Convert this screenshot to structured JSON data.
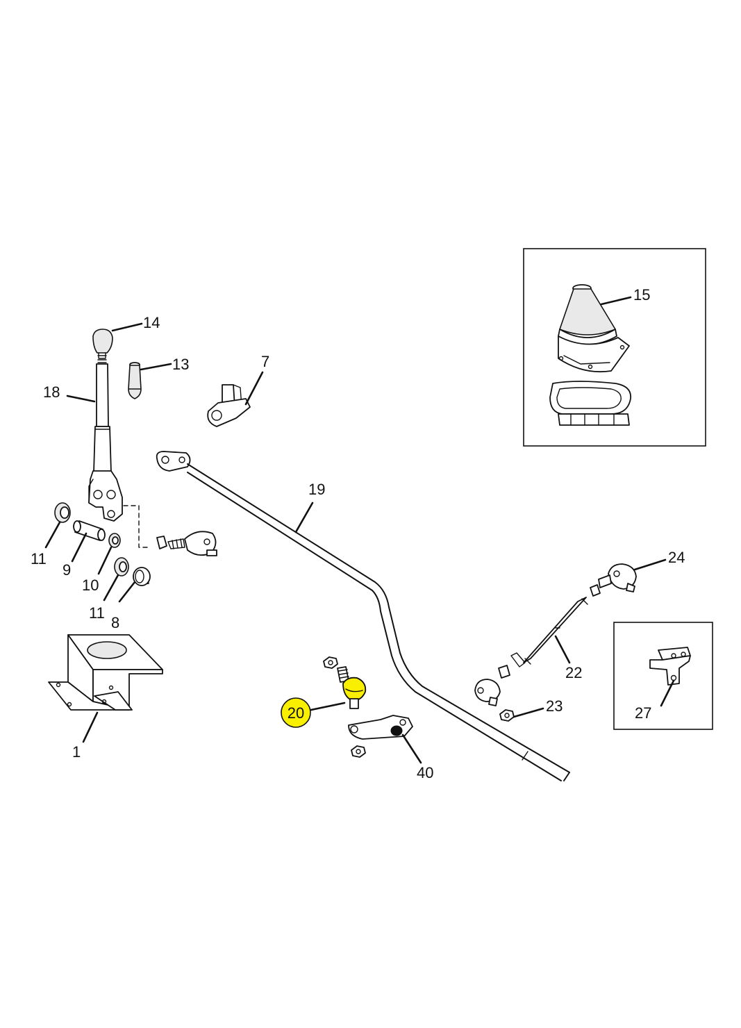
{
  "highlight_color": "#f8f000",
  "callouts": [
    {
      "id": "c14",
      "text": "14"
    },
    {
      "id": "c13",
      "text": "13"
    },
    {
      "id": "c18",
      "text": "18"
    },
    {
      "id": "c7",
      "text": "7"
    },
    {
      "id": "c15",
      "text": "15"
    },
    {
      "id": "c19",
      "text": "19"
    },
    {
      "id": "c11a",
      "text": "11"
    },
    {
      "id": "c9",
      "text": "9"
    },
    {
      "id": "c10",
      "text": "10"
    },
    {
      "id": "c11b",
      "text": "11"
    },
    {
      "id": "c8",
      "text": "8"
    },
    {
      "id": "c24",
      "text": "24"
    },
    {
      "id": "c22",
      "text": "22"
    },
    {
      "id": "c23",
      "text": "23"
    },
    {
      "id": "c27",
      "text": "27"
    },
    {
      "id": "c20",
      "text": "20",
      "highlighted": true
    },
    {
      "id": "c40",
      "text": "40"
    },
    {
      "id": "c1",
      "text": "1"
    }
  ]
}
